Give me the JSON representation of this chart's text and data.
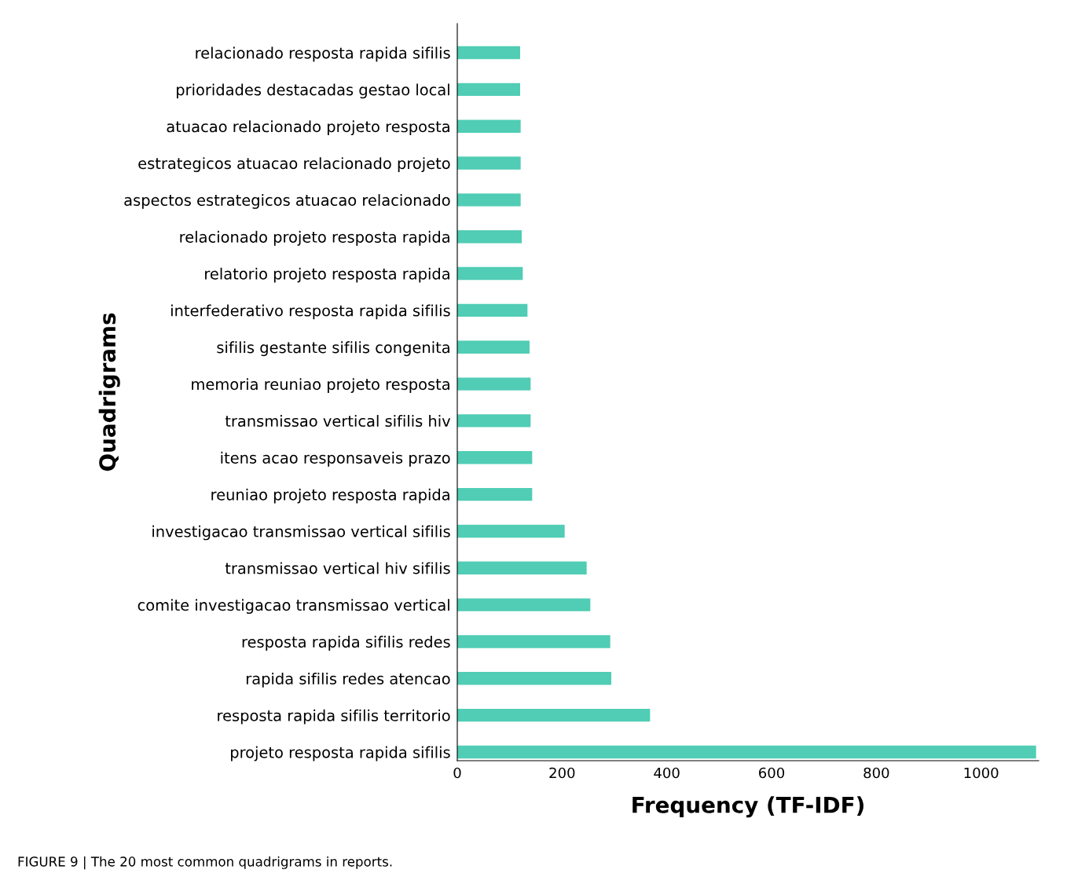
{
  "chart_data": {
    "type": "bar",
    "orientation": "horizontal",
    "xlabel": "Frequency (TF-IDF)",
    "ylabel": "Quadrigrams",
    "categories": [
      "relacionado resposta rapida sifilis",
      "prioridades destacadas gestao local",
      "atuacao relacionado projeto resposta",
      "estrategicos atuacao relacionado projeto",
      "aspectos estrategicos atuacao relacionado",
      "relacionado projeto resposta rapida",
      "relatorio projeto resposta rapida",
      "interfederativo resposta rapida sifilis",
      "sifilis gestante sifilis congenita",
      "memoria reuniao projeto resposta",
      "transmissao vertical sifilis hiv",
      "itens acao responsaveis prazo",
      "reuniao projeto resposta rapida",
      "investigacao transmissao vertical sifilis",
      "transmissao vertical hiv sifilis",
      "comite investigacao transmissao vertical",
      "resposta rapida sifilis redes",
      "rapida sifilis redes atencao",
      "resposta rapida sifilis territorio",
      "projeto resposta rapida sifilis"
    ],
    "values": [
      120,
      120,
      121,
      121,
      121,
      123,
      125,
      134,
      138,
      140,
      140,
      143,
      143,
      205,
      247,
      254,
      292,
      294,
      368,
      1105
    ],
    "color": "#50cdb4",
    "xlim": [
      0,
      1110
    ],
    "xticks": [
      0,
      200,
      400,
      600,
      800,
      1000
    ],
    "grid": false,
    "legend": false,
    "annotations": [
      "FIGURE 9 | The 20 most common quadrigrams in reports."
    ]
  }
}
